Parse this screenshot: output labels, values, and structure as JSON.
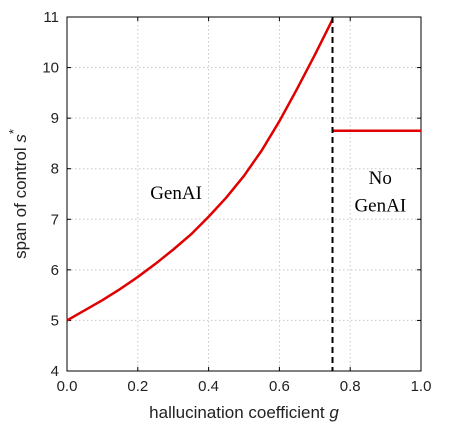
{
  "chart_data": {
    "type": "line",
    "xlabel": "hallucination coefficient",
    "xlabel_var": "g",
    "ylabel": "span of control",
    "ylabel_var": "s",
    "ylabel_sup": "*",
    "xlim": [
      0,
      1
    ],
    "ylim": [
      4,
      11
    ],
    "xticks": [
      0,
      0.2,
      0.4,
      0.6,
      0.8,
      1
    ],
    "xtick_labels": [
      "0.0",
      "0.2",
      "0.4",
      "0.6",
      "0.8",
      "1.0"
    ],
    "yticks": [
      4,
      5,
      6,
      7,
      8,
      9,
      10,
      11
    ],
    "ytick_labels": [
      "4",
      "5",
      "6",
      "7",
      "8",
      "9",
      "10",
      "11"
    ],
    "grid": true,
    "threshold_x": 0.75,
    "series": [
      {
        "color": "#e00000",
        "x": [
          0,
          0.05,
          0.1,
          0.15,
          0.2,
          0.25,
          0.3,
          0.35,
          0.4,
          0.45,
          0.5,
          0.55,
          0.6,
          0.65,
          0.7,
          0.75
        ],
        "y": [
          5.0,
          5.2,
          5.4,
          5.62,
          5.86,
          6.12,
          6.4,
          6.7,
          7.05,
          7.43,
          7.86,
          8.36,
          8.94,
          9.58,
          10.25,
          10.95
        ]
      },
      {
        "color": "#e00000",
        "x": [
          0.75,
          1.0
        ],
        "y": [
          8.75,
          8.75
        ]
      }
    ],
    "annotations": {
      "genai": "GenAI",
      "no_genai_1": "No",
      "no_genai_2": "GenAI"
    }
  }
}
